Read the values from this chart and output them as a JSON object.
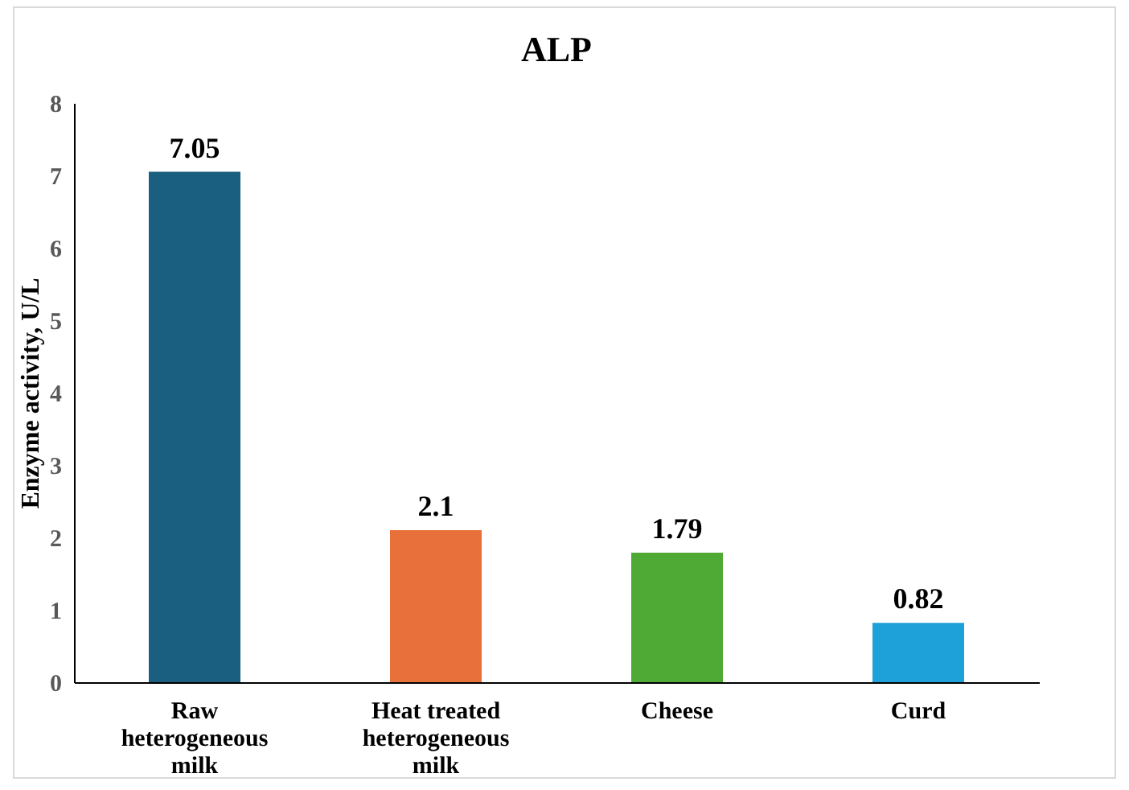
{
  "chart_data": {
    "type": "bar",
    "title": "ALP",
    "ylabel": "Enzyme activity, U/L",
    "categories": [
      "Raw heterogeneous milk",
      "Heat treated heterogeneous milk",
      "Cheese",
      "Curd"
    ],
    "values": [
      7.05,
      2.1,
      1.79,
      0.82
    ],
    "colors": [
      "#1a5e80",
      "#e8703a",
      "#4eaa35",
      "#1ea0d8"
    ],
    "ylim": [
      0,
      8
    ],
    "yticks": [
      0,
      1,
      2,
      3,
      4,
      5,
      6,
      7,
      8
    ],
    "grid": false,
    "data_labels": true
  }
}
